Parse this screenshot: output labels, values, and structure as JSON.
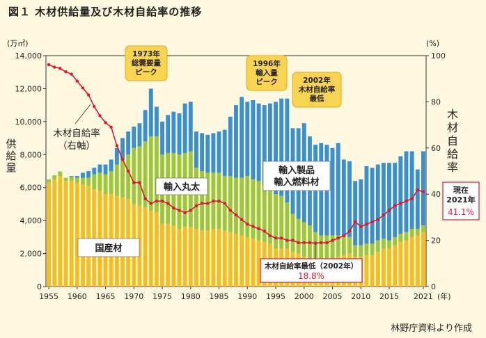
{
  "figure": {
    "title": "図１ 木材供給量及び木材自給率の推移",
    "source": "林野庁資料より作成"
  },
  "colors": {
    "background": "#fdf8df",
    "domestic": "#f6bd1f",
    "imported_logs": "#9dc73b",
    "imported_products": "#3a8fd1",
    "rate_line": "#e0182d",
    "callout_fill": "#f9d352",
    "callout_stroke": "#e6a817"
  },
  "chart_data": {
    "type": "bar",
    "stacked": true,
    "title": "木材供給量及び木材自給率の推移",
    "years": [
      1955,
      1956,
      1957,
      1958,
      1959,
      1960,
      1961,
      1962,
      1963,
      1964,
      1965,
      1966,
      1967,
      1968,
      1969,
      1970,
      1971,
      1972,
      1973,
      1974,
      1975,
      1976,
      1977,
      1978,
      1979,
      1980,
      1981,
      1982,
      1983,
      1984,
      1985,
      1986,
      1987,
      1988,
      1989,
      1990,
      1991,
      1992,
      1993,
      1994,
      1995,
      1996,
      1997,
      1998,
      1999,
      2000,
      2001,
      2002,
      2003,
      2004,
      2005,
      2006,
      2007,
      2008,
      2009,
      2010,
      2011,
      2012,
      2013,
      2014,
      2015,
      2016,
      2017,
      2018,
      2019,
      2020,
      2021
    ],
    "x_ticks": [
      "1955",
      "1960",
      "1965",
      "1970",
      "1975",
      "1980",
      "1985",
      "1990",
      "1995",
      "2000",
      "2005",
      "2010",
      "2015",
      "2021"
    ],
    "x_unit": "(年)",
    "y_left": {
      "label": "供給量",
      "unit": "(万㎥)",
      "range": [
        0,
        14000
      ],
      "ticks": [
        "0",
        "2,000",
        "4,000",
        "6,000",
        "8,000",
        "10,000",
        "12,000",
        "14,000"
      ]
    },
    "y_right": {
      "label": "木材自給率",
      "unit": "(%)",
      "range": [
        0,
        100
      ],
      "ticks": [
        "0",
        "20",
        "40",
        "60",
        "80",
        "100"
      ]
    },
    "series": [
      {
        "name": "国産材",
        "values": [
          6300,
          6500,
          6700,
          6400,
          6400,
          6300,
          6200,
          6100,
          5900,
          5800,
          5600,
          5600,
          5500,
          5400,
          5300,
          5000,
          4900,
          4800,
          4600,
          4500,
          3800,
          3800,
          3700,
          3500,
          3600,
          3600,
          3500,
          3400,
          3400,
          3500,
          3500,
          3400,
          3300,
          3200,
          3100,
          3000,
          2900,
          2800,
          2700,
          2600,
          2300,
          2300,
          2300,
          2100,
          2000,
          1800,
          1700,
          1600,
          1600,
          1700,
          1700,
          1800,
          1900,
          2000,
          1800,
          1800,
          1900,
          1900,
          2100,
          2300,
          2300,
          2500,
          2700,
          2800,
          3000,
          3100,
          3300
        ]
      },
      {
        "name": "輸入丸太",
        "values": [
          200,
          250,
          280,
          200,
          250,
          300,
          400,
          500,
          900,
          1100,
          1200,
          1400,
          1900,
          2300,
          2700,
          3400,
          3600,
          4000,
          4500,
          4600,
          4200,
          4300,
          4400,
          4500,
          4500,
          4600,
          3700,
          3600,
          3500,
          3400,
          3400,
          3300,
          3400,
          3400,
          3500,
          3700,
          3600,
          3600,
          3500,
          3500,
          3300,
          3200,
          2800,
          2300,
          2100,
          2100,
          2000,
          1700,
          1500,
          1400,
          1400,
          1300,
          1200,
          1000,
          700,
          700,
          700,
          700,
          700,
          600,
          500,
          500,
          500,
          500,
          500,
          400,
          400
        ]
      },
      {
        "name": "輸入製品",
        "values": [
          0,
          0,
          0,
          0,
          50,
          100,
          300,
          400,
          400,
          500,
          600,
          700,
          1000,
          1300,
          1400,
          1300,
          1400,
          1900,
          2900,
          1800,
          2000,
          2300,
          2500,
          2500,
          3000,
          3000,
          2200,
          2300,
          2300,
          2400,
          2500,
          2800,
          3600,
          4400,
          4900,
          4500,
          4800,
          4700,
          4800,
          5000,
          5600,
          5900,
          6300,
          5200,
          5500,
          6000,
          5400,
          5300,
          5600,
          5500,
          5300,
          5600,
          4600,
          4600,
          3900,
          4000,
          4700,
          4600,
          4600,
          4600,
          4700,
          4500,
          4700,
          4900,
          4700,
          3600,
          4500
        ]
      }
    ],
    "rate_line": {
      "name": "木材自給率（右軸）",
      "values": [
        96.1,
        95,
        94.5,
        93,
        92,
        89,
        86,
        83,
        78,
        74,
        71,
        69,
        61,
        55,
        50,
        45,
        45,
        38,
        36,
        37,
        37,
        36,
        34,
        33,
        32,
        33,
        35,
        36,
        36,
        37,
        37,
        36,
        33,
        31,
        29,
        27,
        26,
        25,
        24,
        22,
        21,
        21,
        20,
        20,
        19,
        19,
        19,
        18.8,
        19,
        19,
        20,
        21,
        22,
        24,
        28,
        26,
        27,
        28,
        29,
        31,
        33,
        35,
        36,
        37,
        38,
        41.8,
        41.1
      ]
    },
    "annotations": {
      "peak1973": "1973年\n総需要量\nピーク",
      "peak1996": "1996年\n輸入量\nピーク",
      "min2002": "2002年\n木材自給率\n最低",
      "label_domestic": "国産材",
      "label_logs": "輸入丸太",
      "label_products": "輸入製品\n輸入燃料材",
      "label_rate": "木材自給率\n（右軸）",
      "min_box_title": "木材自給率最低（2002年）",
      "min_box_value": "18.8%",
      "current_box_title": "現在\n2021年",
      "current_box_value": "41.1%"
    }
  }
}
